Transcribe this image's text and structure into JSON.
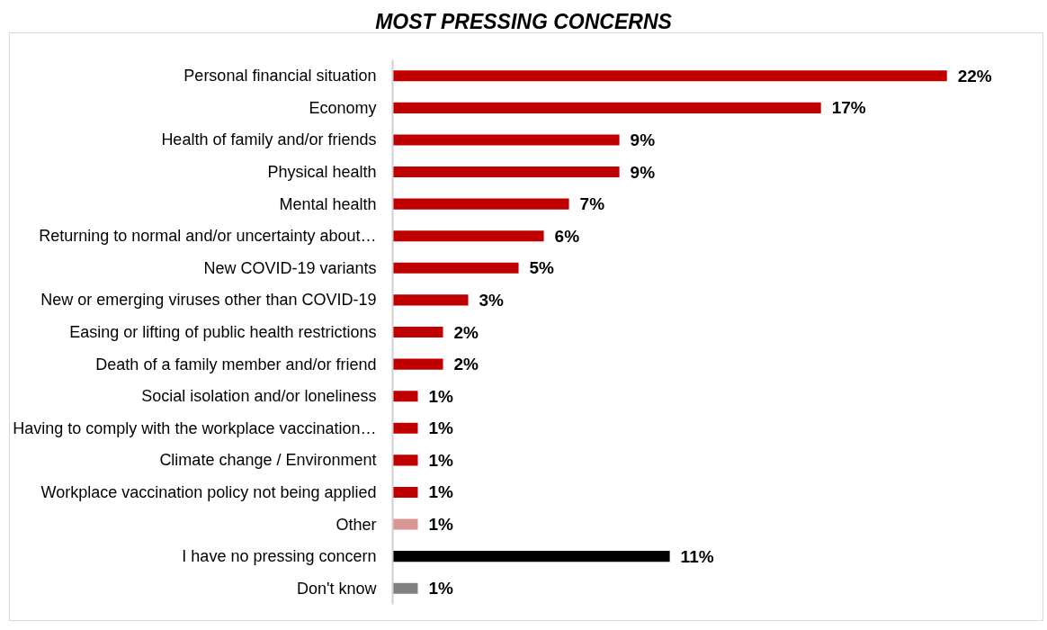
{
  "chart_data": {
    "type": "bar",
    "orientation": "horizontal",
    "title": "MOST PRESSING CONCERNS",
    "categories": [
      "Personal financial situation",
      "Economy",
      "Health of family and/or friends",
      "Physical health",
      "Mental health",
      "Returning to normal and/or uncertainty about…",
      "New COVID-19 variants",
      "New or emerging viruses other than COVID-19",
      "Easing or lifting of public health restrictions",
      "Death of a family member and/or friend",
      "Social isolation and/or loneliness",
      "Having to comply with the workplace vaccination…",
      "Climate change / Environment",
      "Workplace vaccination policy not being applied",
      "Other",
      "I have no pressing concern",
      "Don't know"
    ],
    "values": [
      22,
      17,
      9,
      9,
      7,
      6,
      5,
      3,
      2,
      2,
      1,
      1,
      1,
      1,
      1,
      11,
      1
    ],
    "value_labels": [
      "22%",
      "17%",
      "9%",
      "9%",
      "7%",
      "6%",
      "5%",
      "3%",
      "2%",
      "2%",
      "1%",
      "1%",
      "1%",
      "1%",
      "1%",
      "11%",
      "1%"
    ],
    "colors": [
      "#c00000",
      "#c00000",
      "#c00000",
      "#c00000",
      "#c00000",
      "#c00000",
      "#c00000",
      "#c00000",
      "#c00000",
      "#c00000",
      "#c00000",
      "#c00000",
      "#c00000",
      "#c00000",
      "#d99694",
      "#000000",
      "#808080"
    ],
    "tick_labels": "y",
    "grid": false
  }
}
